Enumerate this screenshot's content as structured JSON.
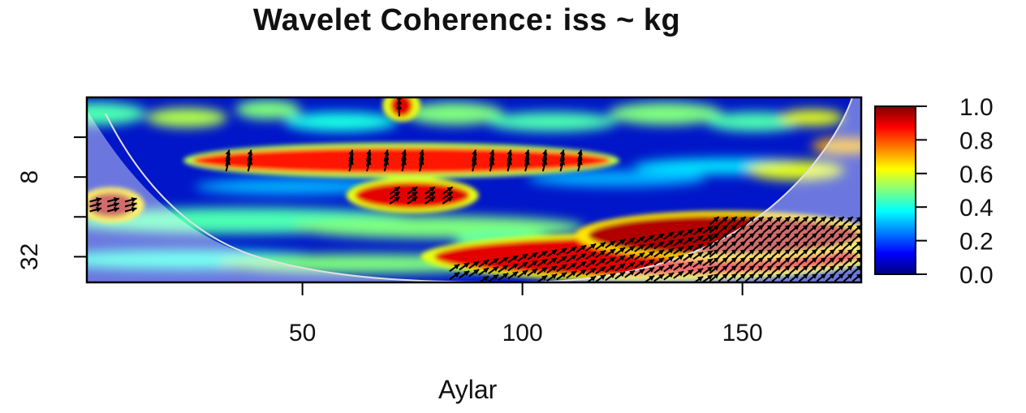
{
  "title": "Wavelet Coherence: iss ~ kg",
  "chart_data": {
    "type": "heatmap",
    "title": "Wavelet Coherence: iss ~ kg",
    "xlabel": "Aylar",
    "ylabel": "",
    "x_range": [
      1,
      177
    ],
    "x_ticks": [
      50,
      100,
      150
    ],
    "x_tick_labels": [
      "50",
      "100",
      "150"
    ],
    "y_scale": "log2 period (increasing downward)",
    "y_range": [
      2,
      50
    ],
    "y_ticks": [
      8,
      32
    ],
    "y_tick_labels": [
      "8",
      "32"
    ],
    "colorbar": {
      "colormap": "jet",
      "range": [
        0.0,
        1.0
      ],
      "ticks": [
        1.0,
        0.8,
        0.6,
        0.4,
        0.2,
        0.0
      ],
      "tick_labels": [
        "1.0",
        "0.8",
        "0.6",
        "0.4",
        "0.2",
        "0.0"
      ],
      "colors": [
        "#00007f",
        "#0000ff",
        "#007fff",
        "#00ffff",
        "#7fff7f",
        "#ffff00",
        "#ff7f00",
        "#ff0000",
        "#7f0000"
      ]
    },
    "cone_of_influence": true,
    "regions_high_coherence": [
      {
        "x_range": [
          25,
          120
        ],
        "period": 6,
        "coherence": 0.85
      },
      {
        "x_range": [
          62,
          88
        ],
        "period": 11,
        "coherence": 0.9
      },
      {
        "x_range": [
          1,
          12
        ],
        "period": 13,
        "coherence": 0.95
      },
      {
        "x_range": [
          80,
          177
        ],
        "period": 32,
        "coherence": 0.9
      },
      {
        "x_range": [
          115,
          177
        ],
        "period": 22,
        "coherence": 0.95
      },
      {
        "x_range": [
          70,
          75
        ],
        "period": 2.3,
        "coherence": 0.9
      }
    ],
    "arrow_groups": [
      {
        "x": [
          33,
          38
        ],
        "period": 6
      },
      {
        "x": [
          61,
          65,
          69,
          73,
          77
        ],
        "period": 6
      },
      {
        "x": [
          89,
          93,
          97,
          101,
          105,
          109,
          113
        ],
        "period": 6
      },
      {
        "x": [
          72
        ],
        "period": 2.3
      },
      {
        "x": [
          71,
          75,
          79,
          83
        ],
        "period": 11
      },
      {
        "x": [
          3,
          7,
          11
        ],
        "period": 13
      }
    ]
  }
}
